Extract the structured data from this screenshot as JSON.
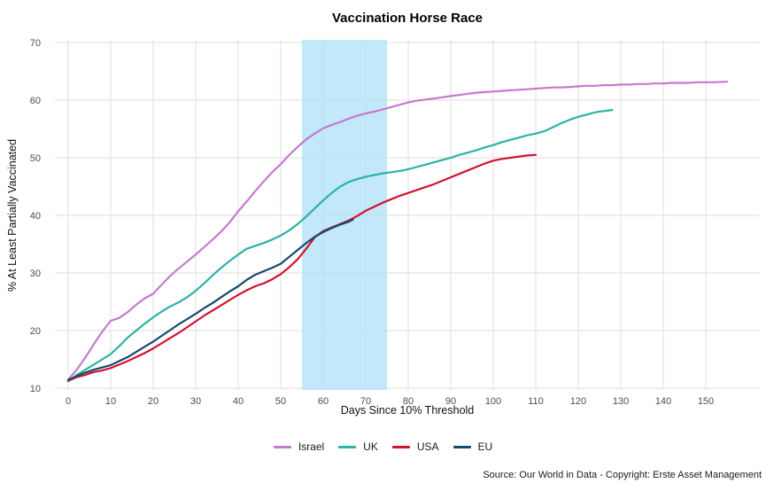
{
  "caption": "Source: Our World in Data - Copyright: Erste Asset Management",
  "chart_data": {
    "type": "line",
    "title": "Vaccination Horse Race",
    "xlabel": "Days Since 10% Threshold",
    "ylabel": "% At Least Partially Vaccinated",
    "xlim": [
      -3,
      163
    ],
    "ylim": [
      9,
      71
    ],
    "x_ticks": [
      0,
      10,
      20,
      30,
      40,
      50,
      60,
      70,
      80,
      90,
      100,
      110,
      120,
      130,
      140,
      150
    ],
    "y_ticks": [
      10,
      20,
      30,
      40,
      50,
      60,
      70
    ],
    "grid": true,
    "gridline_color": "#e4e4e4",
    "background_color": "#ffffff",
    "legend_position": "bottom",
    "shaded_region": {
      "x_start": 55,
      "x_end": 75,
      "color": "rgba(173,224,248,0.75)"
    },
    "series": [
      {
        "name": "Israel",
        "color": "#c57bce",
        "points": [
          [
            0,
            11.5
          ],
          [
            2,
            13.2
          ],
          [
            4,
            15.3
          ],
          [
            6,
            17.6
          ],
          [
            8,
            19.8
          ],
          [
            10,
            21.7
          ],
          [
            12,
            22.2
          ],
          [
            14,
            23.2
          ],
          [
            16,
            24.5
          ],
          [
            18,
            25.6
          ],
          [
            20,
            26.4
          ],
          [
            22,
            28.0
          ],
          [
            24,
            29.5
          ],
          [
            26,
            30.8
          ],
          [
            28,
            32.0
          ],
          [
            30,
            33.2
          ],
          [
            32,
            34.5
          ],
          [
            34,
            35.8
          ],
          [
            36,
            37.2
          ],
          [
            38,
            38.8
          ],
          [
            40,
            40.7
          ],
          [
            42,
            42.4
          ],
          [
            44,
            44.2
          ],
          [
            46,
            45.9
          ],
          [
            48,
            47.5
          ],
          [
            50,
            48.9
          ],
          [
            52,
            50.5
          ],
          [
            54,
            51.9
          ],
          [
            56,
            53.2
          ],
          [
            58,
            54.2
          ],
          [
            60,
            55.1
          ],
          [
            62,
            55.7
          ],
          [
            64,
            56.2
          ],
          [
            66,
            56.8
          ],
          [
            68,
            57.3
          ],
          [
            70,
            57.7
          ],
          [
            72,
            58.0
          ],
          [
            74,
            58.4
          ],
          [
            76,
            58.8
          ],
          [
            78,
            59.2
          ],
          [
            80,
            59.6
          ],
          [
            82,
            59.9
          ],
          [
            84,
            60.1
          ],
          [
            86,
            60.3
          ],
          [
            88,
            60.5
          ],
          [
            90,
            60.7
          ],
          [
            92,
            60.9
          ],
          [
            94,
            61.1
          ],
          [
            96,
            61.3
          ],
          [
            98,
            61.4
          ],
          [
            100,
            61.5
          ],
          [
            102,
            61.6
          ],
          [
            104,
            61.7
          ],
          [
            106,
            61.8
          ],
          [
            108,
            61.9
          ],
          [
            110,
            62.0
          ],
          [
            112,
            62.1
          ],
          [
            114,
            62.2
          ],
          [
            116,
            62.2
          ],
          [
            118,
            62.3
          ],
          [
            120,
            62.4
          ],
          [
            122,
            62.5
          ],
          [
            124,
            62.5
          ],
          [
            126,
            62.6
          ],
          [
            128,
            62.6
          ],
          [
            130,
            62.7
          ],
          [
            132,
            62.7
          ],
          [
            134,
            62.8
          ],
          [
            136,
            62.8
          ],
          [
            138,
            62.9
          ],
          [
            140,
            62.9
          ],
          [
            142,
            63.0
          ],
          [
            144,
            63.0
          ],
          [
            146,
            63.0
          ],
          [
            148,
            63.1
          ],
          [
            150,
            63.1
          ],
          [
            152,
            63.1
          ],
          [
            155,
            63.2
          ]
        ]
      },
      {
        "name": "UK",
        "color": "#2ab3a6",
        "points": [
          [
            0,
            11.2
          ],
          [
            2,
            12.3
          ],
          [
            4,
            13.2
          ],
          [
            6,
            14.1
          ],
          [
            8,
            15.0
          ],
          [
            10,
            15.9
          ],
          [
            12,
            17.3
          ],
          [
            14,
            18.8
          ],
          [
            16,
            20.0
          ],
          [
            18,
            21.2
          ],
          [
            20,
            22.3
          ],
          [
            22,
            23.3
          ],
          [
            24,
            24.2
          ],
          [
            26,
            24.9
          ],
          [
            28,
            25.8
          ],
          [
            30,
            26.9
          ],
          [
            32,
            28.2
          ],
          [
            34,
            29.6
          ],
          [
            36,
            30.9
          ],
          [
            38,
            32.1
          ],
          [
            40,
            33.2
          ],
          [
            42,
            34.2
          ],
          [
            44,
            34.7
          ],
          [
            46,
            35.2
          ],
          [
            48,
            35.8
          ],
          [
            50,
            36.5
          ],
          [
            52,
            37.4
          ],
          [
            54,
            38.5
          ],
          [
            56,
            39.8
          ],
          [
            58,
            41.2
          ],
          [
            60,
            42.6
          ],
          [
            62,
            43.9
          ],
          [
            64,
            45.0
          ],
          [
            66,
            45.8
          ],
          [
            68,
            46.3
          ],
          [
            70,
            46.7
          ],
          [
            72,
            47.0
          ],
          [
            74,
            47.3
          ],
          [
            76,
            47.5
          ],
          [
            78,
            47.7
          ],
          [
            80,
            48.0
          ],
          [
            82,
            48.4
          ],
          [
            84,
            48.8
          ],
          [
            86,
            49.2
          ],
          [
            88,
            49.6
          ],
          [
            90,
            50.0
          ],
          [
            92,
            50.5
          ],
          [
            94,
            50.9
          ],
          [
            96,
            51.3
          ],
          [
            98,
            51.8
          ],
          [
            100,
            52.2
          ],
          [
            102,
            52.7
          ],
          [
            104,
            53.1
          ],
          [
            106,
            53.5
          ],
          [
            108,
            53.9
          ],
          [
            110,
            54.2
          ],
          [
            112,
            54.6
          ],
          [
            114,
            55.3
          ],
          [
            116,
            56.0
          ],
          [
            118,
            56.6
          ],
          [
            120,
            57.1
          ],
          [
            122,
            57.5
          ],
          [
            124,
            57.9
          ],
          [
            126,
            58.1
          ],
          [
            128,
            58.3
          ]
        ]
      },
      {
        "name": "USA",
        "color": "#d2122e",
        "points": [
          [
            0,
            11.3
          ],
          [
            2,
            11.9
          ],
          [
            4,
            12.3
          ],
          [
            6,
            12.8
          ],
          [
            8,
            13.1
          ],
          [
            10,
            13.5
          ],
          [
            12,
            14.1
          ],
          [
            14,
            14.7
          ],
          [
            16,
            15.4
          ],
          [
            18,
            16.1
          ],
          [
            20,
            16.9
          ],
          [
            22,
            17.8
          ],
          [
            24,
            18.7
          ],
          [
            26,
            19.6
          ],
          [
            28,
            20.6
          ],
          [
            30,
            21.6
          ],
          [
            32,
            22.6
          ],
          [
            34,
            23.5
          ],
          [
            36,
            24.4
          ],
          [
            38,
            25.3
          ],
          [
            40,
            26.2
          ],
          [
            42,
            27.0
          ],
          [
            44,
            27.7
          ],
          [
            46,
            28.2
          ],
          [
            48,
            28.9
          ],
          [
            50,
            29.8
          ],
          [
            52,
            31.0
          ],
          [
            54,
            32.4
          ],
          [
            56,
            34.2
          ],
          [
            58,
            36.2
          ],
          [
            60,
            37.3
          ],
          [
            62,
            37.9
          ],
          [
            64,
            38.5
          ],
          [
            66,
            39.1
          ],
          [
            68,
            39.9
          ],
          [
            70,
            40.8
          ],
          [
            72,
            41.5
          ],
          [
            74,
            42.2
          ],
          [
            76,
            42.8
          ],
          [
            78,
            43.4
          ],
          [
            80,
            43.9
          ],
          [
            82,
            44.4
          ],
          [
            84,
            44.9
          ],
          [
            86,
            45.4
          ],
          [
            88,
            46.0
          ],
          [
            90,
            46.6
          ],
          [
            92,
            47.2
          ],
          [
            94,
            47.8
          ],
          [
            96,
            48.4
          ],
          [
            98,
            49.0
          ],
          [
            100,
            49.5
          ],
          [
            102,
            49.8
          ],
          [
            104,
            50.0
          ],
          [
            106,
            50.2
          ],
          [
            108,
            50.4
          ],
          [
            110,
            50.5
          ]
        ]
      },
      {
        "name": "EU",
        "color": "#17486e",
        "points": [
          [
            0,
            11.4
          ],
          [
            2,
            12.1
          ],
          [
            4,
            12.7
          ],
          [
            6,
            13.2
          ],
          [
            8,
            13.6
          ],
          [
            10,
            14.0
          ],
          [
            12,
            14.7
          ],
          [
            14,
            15.4
          ],
          [
            16,
            16.3
          ],
          [
            18,
            17.2
          ],
          [
            20,
            18.1
          ],
          [
            22,
            19.1
          ],
          [
            24,
            20.1
          ],
          [
            26,
            21.1
          ],
          [
            28,
            22.0
          ],
          [
            30,
            22.9
          ],
          [
            32,
            23.9
          ],
          [
            34,
            24.8
          ],
          [
            36,
            25.8
          ],
          [
            38,
            26.8
          ],
          [
            40,
            27.7
          ],
          [
            42,
            28.8
          ],
          [
            44,
            29.7
          ],
          [
            46,
            30.3
          ],
          [
            48,
            30.9
          ],
          [
            50,
            31.6
          ],
          [
            52,
            32.8
          ],
          [
            54,
            34.0
          ],
          [
            56,
            35.2
          ],
          [
            58,
            36.3
          ],
          [
            60,
            37.1
          ],
          [
            62,
            37.8
          ],
          [
            64,
            38.4
          ],
          [
            66,
            38.9
          ],
          [
            67,
            39.3
          ]
        ]
      }
    ]
  }
}
